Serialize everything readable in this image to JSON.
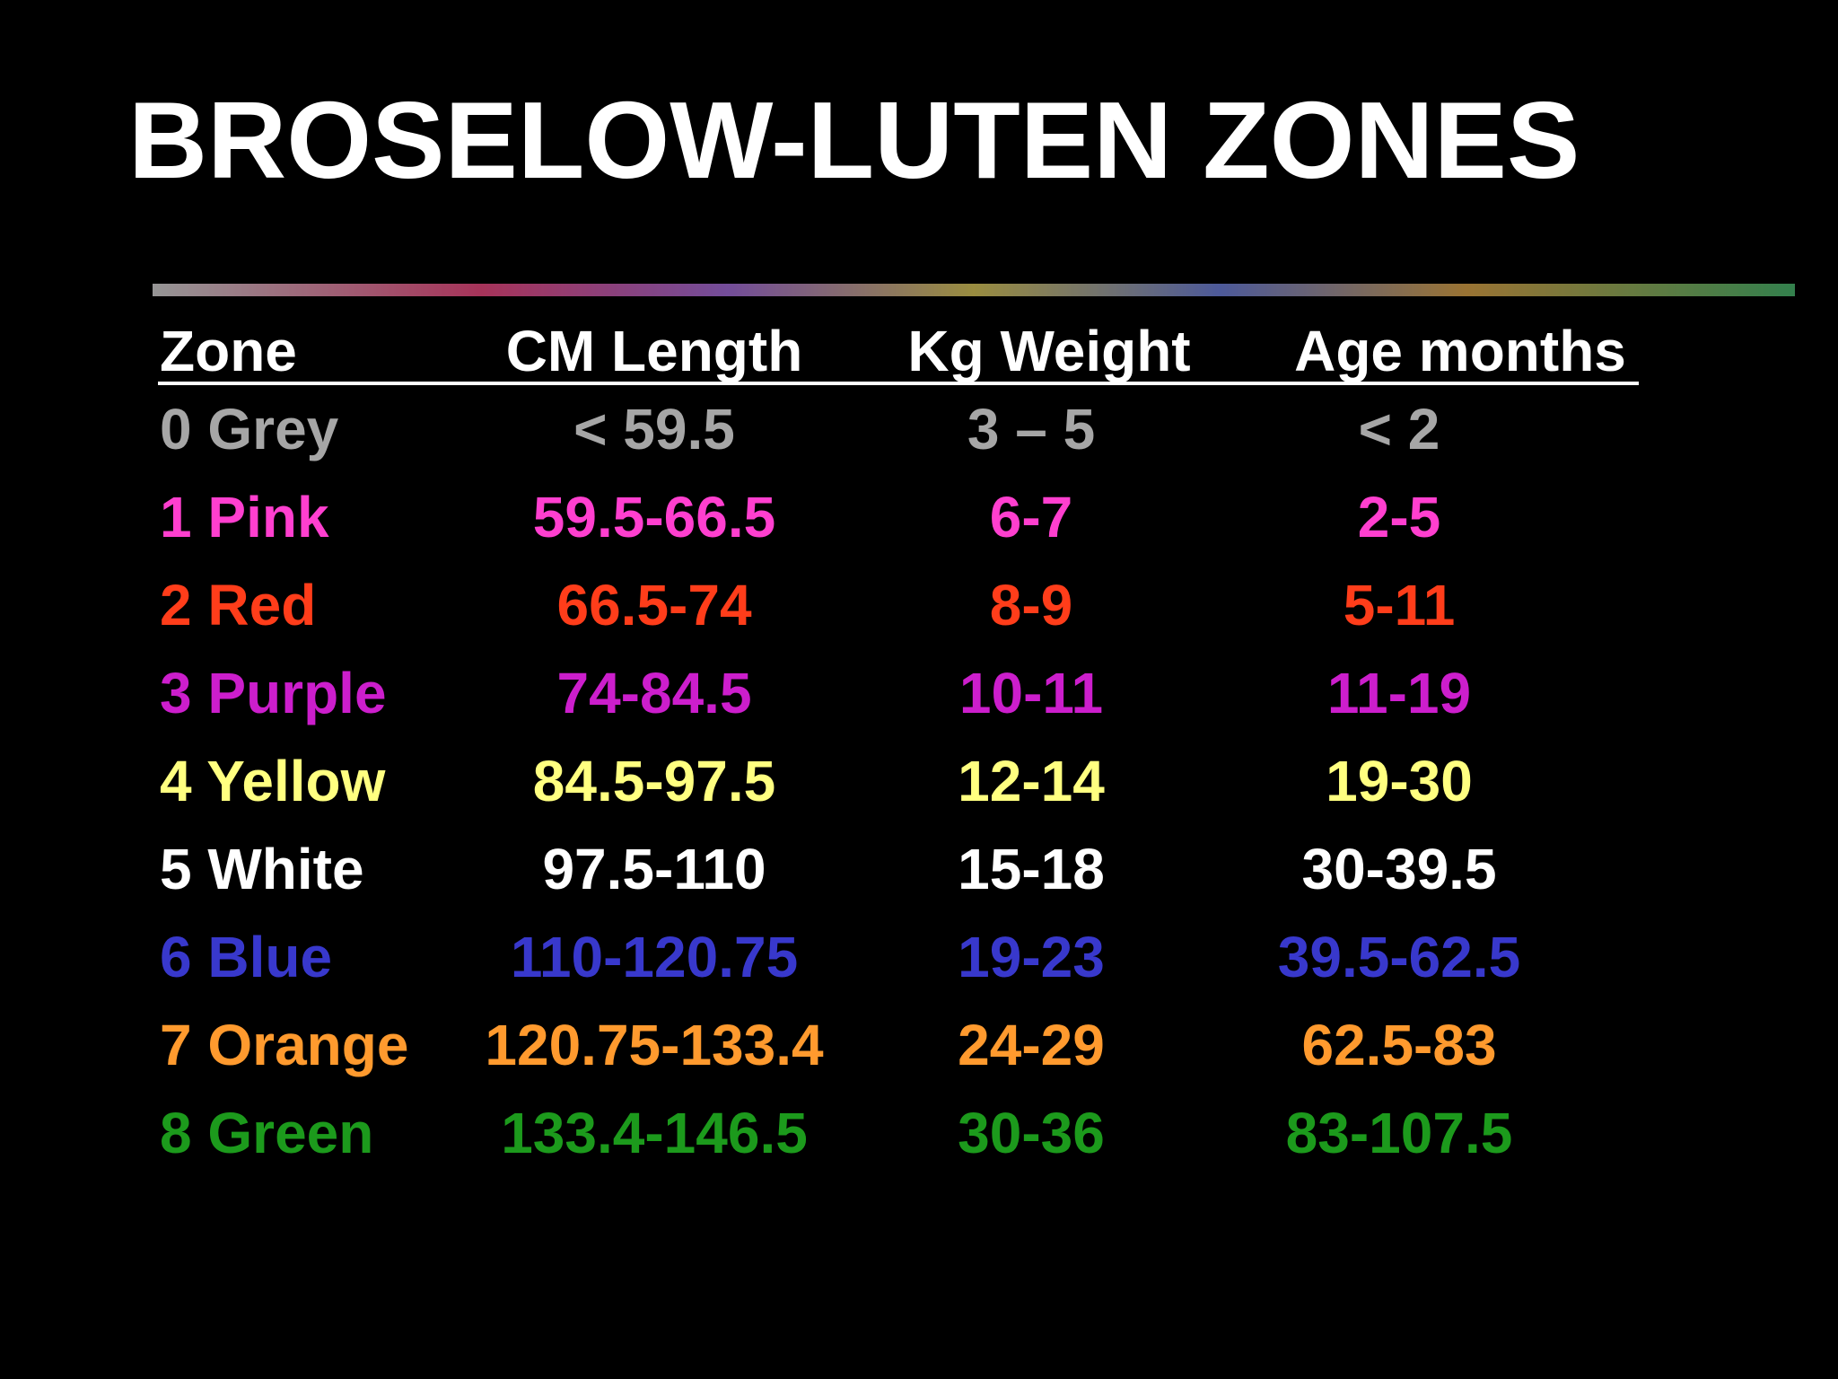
{
  "header": {
    "title": "BROSELOW-LUTEN ZONES"
  },
  "table": {
    "columns": [
      "Zone",
      "CM Length",
      "Kg Weight",
      "Age months"
    ],
    "rows": [
      [
        "0 Grey",
        "< 59.5",
        "3 – 5",
        "< 2"
      ],
      [
        "1 Pink",
        "59.5-66.5",
        "6-7",
        "2-5"
      ],
      [
        "2 Red",
        "66.5-74",
        "8-9",
        "5-11"
      ],
      [
        "3 Purple",
        "74-84.5",
        "10-11",
        "11-19"
      ],
      [
        "4 Yellow",
        "84.5-97.5",
        "12-14",
        "19-30"
      ],
      [
        "5 White",
        "97.5-110",
        "15-18",
        "30-39.5"
      ],
      [
        "6 Blue",
        "110-120.75",
        "19-23",
        "39.5-62.5"
      ],
      [
        "7 Orange",
        "120.75-133.4",
        "24-29",
        "62.5-83"
      ],
      [
        "8 Green",
        "133.4-146.5",
        "30-36",
        "83-107.5"
      ]
    ]
  }
}
